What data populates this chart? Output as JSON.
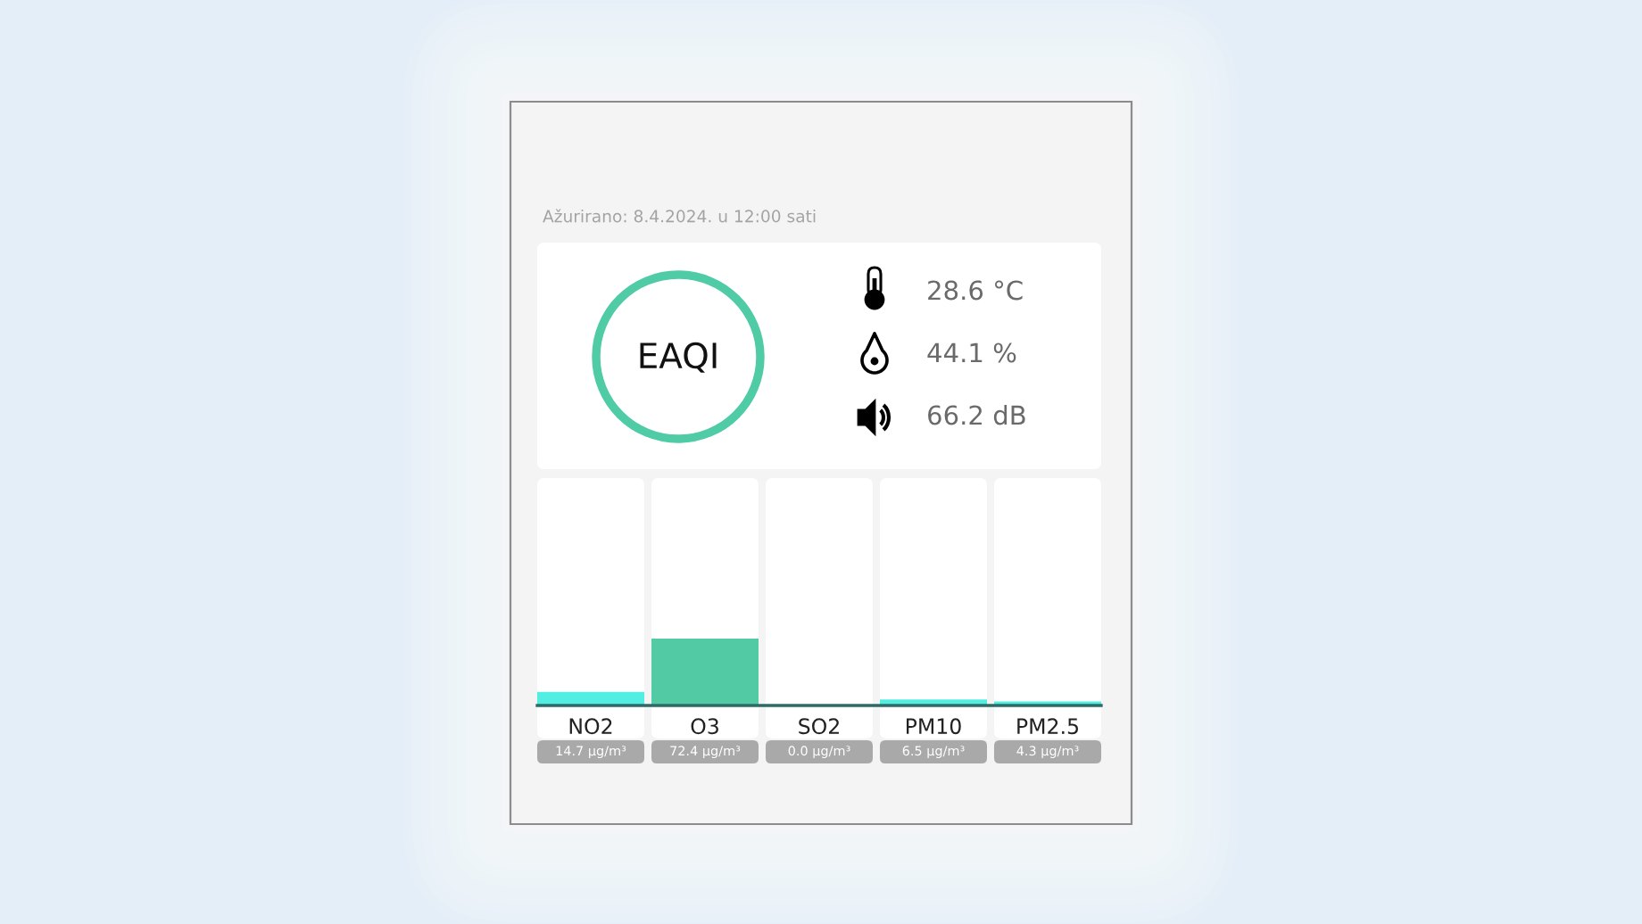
{
  "chart_data": {
    "type": "bar",
    "categories": [
      "NO2",
      "O3",
      "SO2",
      "PM10",
      "PM2.5"
    ],
    "values": [
      14.7,
      72.4,
      0.0,
      6.5,
      4.3
    ],
    "tick_labels": "x",
    "colors": [
      "#52eee2",
      "#52cba5",
      "#52eee2",
      "#52eee2",
      "#52eee2"
    ],
    "value_labels": [
      "14.7 µg/m³",
      "72.4 µg/m³",
      "0.0 µg/m³",
      "6.5 µg/m³",
      "4.3 µg/m³"
    ],
    "annotations": [
      "Ažurirano: 8.4.2024. u 12:00 sati",
      "EAQI",
      "28.6 °C",
      "44.1 %",
      "66.2 dB"
    ]
  }
}
